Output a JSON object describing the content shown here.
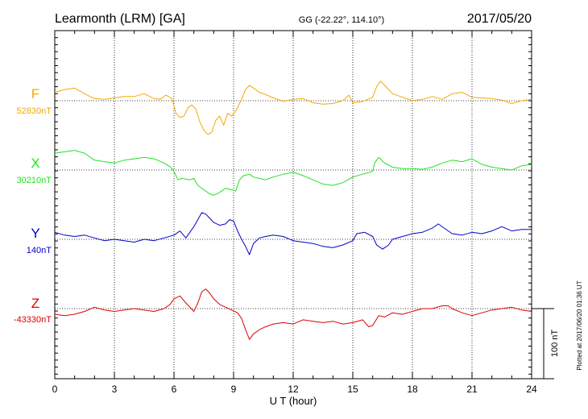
{
  "chart_data": {
    "type": "line",
    "title_left": "Learmonth (LRM)  [GA]",
    "title_center": "GG (-22.22°, 114.10°)",
    "title_right": "2017/05/20",
    "xlabel": "U T (hour)",
    "xlim": [
      0,
      24
    ],
    "xticks": [
      0,
      3,
      6,
      9,
      12,
      15,
      18,
      21,
      24
    ],
    "tick_labels": [
      "0",
      "3",
      "6",
      "9",
      "12",
      "15",
      "18",
      "21",
      "24"
    ],
    "scale_bar_nT": 100,
    "scale_label": "100 nT",
    "footer": "Plotted at 2017/06/20 01:36 UT",
    "grid": true,
    "series": [
      {
        "name": "F",
        "baseline_label": "52830nT",
        "color": "#f5a800",
        "points": [
          [
            0,
            -12
          ],
          [
            0.5,
            -16
          ],
          [
            1,
            -18
          ],
          [
            1.5,
            -10
          ],
          [
            2,
            -3
          ],
          [
            2.5,
            -2
          ],
          [
            3,
            -4
          ],
          [
            3.5,
            -6
          ],
          [
            4,
            -6
          ],
          [
            4.5,
            -10
          ],
          [
            5,
            -3
          ],
          [
            5.3,
            -2
          ],
          [
            5.6,
            -8
          ],
          [
            5.9,
            -3
          ],
          [
            6.1,
            18
          ],
          [
            6.3,
            24
          ],
          [
            6.5,
            22
          ],
          [
            6.7,
            10
          ],
          [
            6.9,
            6
          ],
          [
            7.1,
            12
          ],
          [
            7.3,
            30
          ],
          [
            7.5,
            42
          ],
          [
            7.7,
            48
          ],
          [
            7.9,
            45
          ],
          [
            8.1,
            28
          ],
          [
            8.3,
            22
          ],
          [
            8.5,
            35
          ],
          [
            8.7,
            18
          ],
          [
            8.9,
            22
          ],
          [
            9.1,
            15
          ],
          [
            9.2,
            10
          ],
          [
            9.4,
            -2
          ],
          [
            9.6,
            -16
          ],
          [
            9.8,
            -22
          ],
          [
            10,
            -18
          ],
          [
            10.3,
            -12
          ],
          [
            10.6,
            -9
          ],
          [
            11,
            -4
          ],
          [
            11.5,
            1
          ],
          [
            12,
            -2
          ],
          [
            12.5,
            -3
          ],
          [
            13,
            3
          ],
          [
            13.5,
            5
          ],
          [
            14,
            4
          ],
          [
            14.5,
            0
          ],
          [
            14.8,
            -8
          ],
          [
            15,
            3
          ],
          [
            15.5,
            1
          ],
          [
            16,
            -5
          ],
          [
            16.2,
            -20
          ],
          [
            16.4,
            -28
          ],
          [
            16.6,
            -22
          ],
          [
            16.8,
            -16
          ],
          [
            17,
            -10
          ],
          [
            17.5,
            -5
          ],
          [
            18,
            0
          ],
          [
            18.5,
            -2
          ],
          [
            19,
            -6
          ],
          [
            19.5,
            -2
          ],
          [
            20,
            -10
          ],
          [
            20.5,
            -12
          ],
          [
            21,
            -5
          ],
          [
            21.5,
            -4
          ],
          [
            22,
            -3
          ],
          [
            22.5,
            -1
          ],
          [
            23,
            4
          ],
          [
            23.5,
            0
          ],
          [
            24,
            -2
          ]
        ]
      },
      {
        "name": "X",
        "baseline_label": "30210nT",
        "color": "#22e022",
        "points": [
          [
            0,
            -24
          ],
          [
            0.5,
            -26
          ],
          [
            1,
            -28
          ],
          [
            1.5,
            -24
          ],
          [
            2,
            -14
          ],
          [
            2.5,
            -12
          ],
          [
            3,
            -10
          ],
          [
            3.5,
            -14
          ],
          [
            4,
            -16
          ],
          [
            4.5,
            -18
          ],
          [
            5,
            -16
          ],
          [
            5.5,
            -10
          ],
          [
            5.8,
            -5
          ],
          [
            6,
            2
          ],
          [
            6.2,
            14
          ],
          [
            6.4,
            12
          ],
          [
            6.8,
            14
          ],
          [
            7,
            12
          ],
          [
            7.2,
            22
          ],
          [
            7.5,
            28
          ],
          [
            7.8,
            34
          ],
          [
            8,
            36
          ],
          [
            8.3,
            32
          ],
          [
            8.6,
            26
          ],
          [
            8.9,
            28
          ],
          [
            9.1,
            30
          ],
          [
            9.3,
            14
          ],
          [
            9.5,
            8
          ],
          [
            9.8,
            6
          ],
          [
            10,
            10
          ],
          [
            10.3,
            12
          ],
          [
            10.6,
            14
          ],
          [
            11,
            10
          ],
          [
            11.5,
            6
          ],
          [
            12,
            3
          ],
          [
            12.5,
            8
          ],
          [
            13,
            14
          ],
          [
            13.5,
            20
          ],
          [
            14,
            22
          ],
          [
            14.5,
            18
          ],
          [
            15,
            10
          ],
          [
            15.5,
            6
          ],
          [
            16,
            2
          ],
          [
            16.1,
            -10
          ],
          [
            16.3,
            -18
          ],
          [
            16.6,
            -10
          ],
          [
            17,
            -4
          ],
          [
            17.5,
            -2
          ],
          [
            18,
            -2
          ],
          [
            18.5,
            -1
          ],
          [
            19,
            -4
          ],
          [
            19.5,
            -10
          ],
          [
            20,
            -14
          ],
          [
            20.5,
            -12
          ],
          [
            21,
            -16
          ],
          [
            21.5,
            -8
          ],
          [
            22,
            -4
          ],
          [
            22.5,
            -2
          ],
          [
            23,
            0
          ],
          [
            23.5,
            -6
          ],
          [
            24,
            -8
          ]
        ]
      },
      {
        "name": "Y",
        "baseline_label": "140nT",
        "color": "#0000cc",
        "points": [
          [
            0,
            -10
          ],
          [
            0.5,
            -6
          ],
          [
            1,
            -4
          ],
          [
            1.5,
            -6
          ],
          [
            2,
            -2
          ],
          [
            2.5,
            2
          ],
          [
            3,
            0
          ],
          [
            3.5,
            2
          ],
          [
            4,
            4
          ],
          [
            4.5,
            0
          ],
          [
            5,
            2
          ],
          [
            5.5,
            -2
          ],
          [
            6,
            -6
          ],
          [
            6.3,
            -12
          ],
          [
            6.6,
            -2
          ],
          [
            6.8,
            -10
          ],
          [
            7,
            -18
          ],
          [
            7.2,
            -28
          ],
          [
            7.4,
            -38
          ],
          [
            7.6,
            -36
          ],
          [
            7.8,
            -30
          ],
          [
            8,
            -24
          ],
          [
            8.3,
            -20
          ],
          [
            8.6,
            -22
          ],
          [
            8.8,
            -28
          ],
          [
            9,
            -26
          ],
          [
            9.2,
            -12
          ],
          [
            9.4,
            0
          ],
          [
            9.6,
            10
          ],
          [
            9.8,
            22
          ],
          [
            10,
            6
          ],
          [
            10.3,
            -2
          ],
          [
            10.6,
            -4
          ],
          [
            11,
            -6
          ],
          [
            11.5,
            -4
          ],
          [
            12,
            2
          ],
          [
            12.5,
            4
          ],
          [
            13,
            6
          ],
          [
            13.5,
            10
          ],
          [
            14,
            12
          ],
          [
            14.5,
            8
          ],
          [
            15,
            2
          ],
          [
            15.2,
            -8
          ],
          [
            15.6,
            -10
          ],
          [
            16,
            -4
          ],
          [
            16.2,
            8
          ],
          [
            16.5,
            14
          ],
          [
            16.8,
            8
          ],
          [
            17,
            0
          ],
          [
            17.5,
            -4
          ],
          [
            18,
            -8
          ],
          [
            18.5,
            -10
          ],
          [
            19,
            -16
          ],
          [
            19.3,
            -22
          ],
          [
            19.6,
            -16
          ],
          [
            20,
            -8
          ],
          [
            20.5,
            -6
          ],
          [
            21,
            -10
          ],
          [
            21.5,
            -8
          ],
          [
            22,
            -12
          ],
          [
            22.5,
            -18
          ],
          [
            23,
            -12
          ],
          [
            23.5,
            -14
          ],
          [
            24,
            -14
          ]
        ]
      },
      {
        "name": "Z",
        "baseline_label": "-43330nT",
        "color": "#dd0000",
        "points": [
          [
            0,
            8
          ],
          [
            0.5,
            10
          ],
          [
            1,
            8
          ],
          [
            1.5,
            4
          ],
          [
            2,
            -2
          ],
          [
            2.5,
            2
          ],
          [
            3,
            4
          ],
          [
            3.5,
            2
          ],
          [
            4,
            0
          ],
          [
            4.5,
            2
          ],
          [
            5,
            4
          ],
          [
            5.5,
            0
          ],
          [
            5.8,
            -6
          ],
          [
            6,
            -14
          ],
          [
            6.3,
            -18
          ],
          [
            6.6,
            -8
          ],
          [
            7,
            4
          ],
          [
            7.2,
            -8
          ],
          [
            7.4,
            -24
          ],
          [
            7.6,
            -28
          ],
          [
            7.8,
            -22
          ],
          [
            8,
            -14
          ],
          [
            8.3,
            -6
          ],
          [
            8.6,
            -2
          ],
          [
            8.9,
            2
          ],
          [
            9.2,
            6
          ],
          [
            9.4,
            14
          ],
          [
            9.6,
            30
          ],
          [
            9.8,
            44
          ],
          [
            10,
            36
          ],
          [
            10.3,
            30
          ],
          [
            10.6,
            26
          ],
          [
            11,
            22
          ],
          [
            11.5,
            20
          ],
          [
            12,
            22
          ],
          [
            12.5,
            16
          ],
          [
            13,
            18
          ],
          [
            13.5,
            20
          ],
          [
            14,
            18
          ],
          [
            14.5,
            22
          ],
          [
            15,
            20
          ],
          [
            15.5,
            16
          ],
          [
            15.8,
            26
          ],
          [
            16,
            24
          ],
          [
            16.3,
            10
          ],
          [
            16.6,
            12
          ],
          [
            17,
            6
          ],
          [
            17.5,
            8
          ],
          [
            18,
            4
          ],
          [
            18.5,
            0
          ],
          [
            19,
            0
          ],
          [
            19.5,
            -4
          ],
          [
            19.8,
            -4
          ],
          [
            20,
            0
          ],
          [
            20.5,
            6
          ],
          [
            21,
            10
          ],
          [
            21.5,
            6
          ],
          [
            22,
            2
          ],
          [
            22.5,
            0
          ],
          [
            23,
            -2
          ],
          [
            23.5,
            2
          ],
          [
            24,
            4
          ]
        ]
      }
    ]
  }
}
